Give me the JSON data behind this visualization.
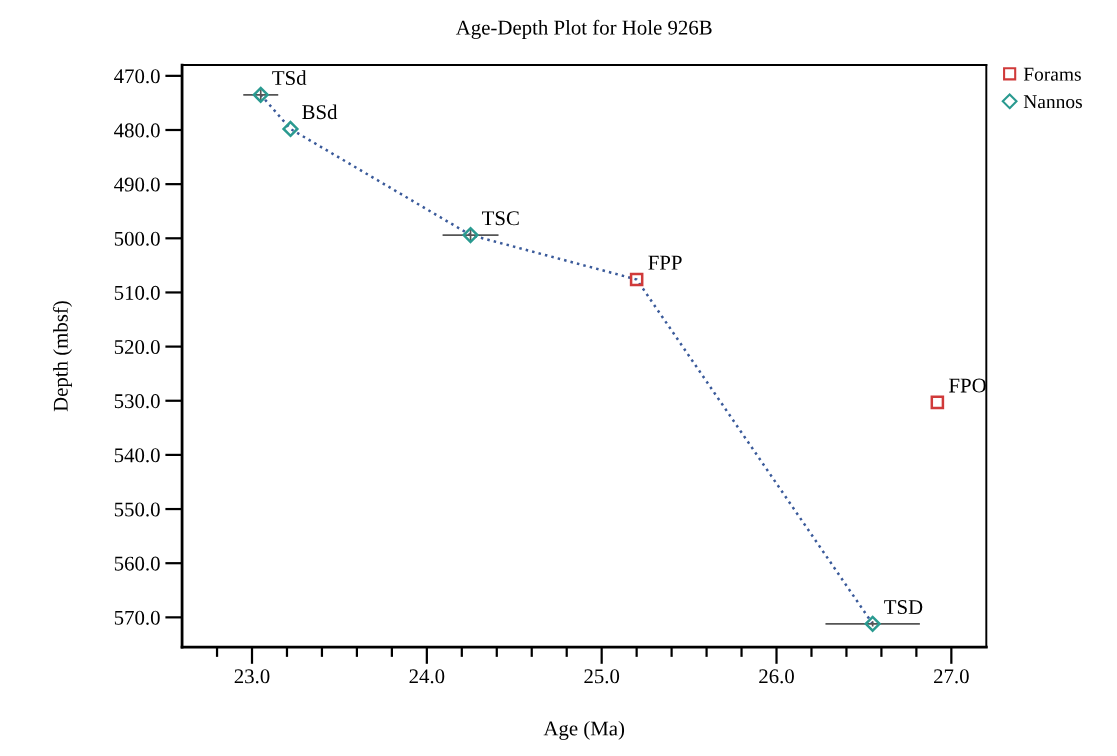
{
  "chart_data": {
    "type": "scatter",
    "title": "Age-Depth Plot for Hole 926B",
    "xlabel": "Age (Ma)",
    "ylabel": "Depth (mbsf)",
    "xlim": [
      22.6,
      27.2
    ],
    "ylim": [
      575.5,
      468
    ],
    "xticks": [
      {
        "value": 22.8,
        "label": null
      },
      {
        "value": 23.0,
        "label": "23.0"
      },
      {
        "value": 23.2,
        "label": null
      },
      {
        "value": 23.4,
        "label": null
      },
      {
        "value": 23.6,
        "label": null
      },
      {
        "value": 23.8,
        "label": null
      },
      {
        "value": 24.0,
        "label": "24.0"
      },
      {
        "value": 24.2,
        "label": null
      },
      {
        "value": 24.4,
        "label": null
      },
      {
        "value": 24.6,
        "label": null
      },
      {
        "value": 24.8,
        "label": null
      },
      {
        "value": 25.0,
        "label": "25.0"
      },
      {
        "value": 25.2,
        "label": null
      },
      {
        "value": 25.4,
        "label": null
      },
      {
        "value": 25.6,
        "label": null
      },
      {
        "value": 25.8,
        "label": null
      },
      {
        "value": 26.0,
        "label": "26.0"
      },
      {
        "value": 26.2,
        "label": null
      },
      {
        "value": 26.4,
        "label": null
      },
      {
        "value": 26.6,
        "label": null
      },
      {
        "value": 26.8,
        "label": null
      },
      {
        "value": 27.0,
        "label": "27.0"
      }
    ],
    "yticks": [
      {
        "value": 470,
        "label": "470.0"
      },
      {
        "value": 480,
        "label": "480.0"
      },
      {
        "value": 490,
        "label": "490.0"
      },
      {
        "value": 500,
        "label": "500.0"
      },
      {
        "value": 510,
        "label": "510.0"
      },
      {
        "value": 520,
        "label": "520.0"
      },
      {
        "value": 530,
        "label": "530.0"
      },
      {
        "value": 540,
        "label": "540.0"
      },
      {
        "value": 550,
        "label": "550.0"
      },
      {
        "value": 560,
        "label": "560.0"
      },
      {
        "value": 570,
        "label": "570.0"
      }
    ],
    "grid": false,
    "legend": "top right",
    "series": [
      {
        "type": "line",
        "color": "#3a5a9a",
        "line_style": "dotted",
        "marker": "none",
        "x": [
          23.05,
          23.22,
          24.25,
          25.2,
          26.55
        ],
        "values": [
          473.5,
          479.8,
          499.4,
          507.6,
          571.2
        ]
      },
      {
        "name": "Forams",
        "color": "#d03a3a",
        "marker": "square",
        "x": [
          25.2,
          26.92
        ],
        "values": [
          507.6,
          530.3
        ]
      },
      {
        "name": "Nannos",
        "color": "#2a9a90",
        "marker": "diamond",
        "x": [
          23.05,
          23.22,
          24.25,
          26.55
        ],
        "values": [
          473.5,
          479.8,
          499.4,
          571.2
        ],
        "xerrors": [
          0.1,
          null,
          0.16,
          0.27
        ],
        "errors": [
          1,
          null,
          1,
          0.5
        ]
      }
    ],
    "annotations": [
      {
        "text": "TSd",
        "x": 23.05,
        "y": 473.5
      },
      {
        "text": "BSd",
        "x": 23.22,
        "y": 479.8
      },
      {
        "text": "TSC",
        "x": 24.25,
        "y": 499.4
      },
      {
        "text": "FPP",
        "x": 25.2,
        "y": 507.6
      },
      {
        "text": "FPO",
        "x": 26.92,
        "y": 530.3
      },
      {
        "text": "TSD",
        "x": 26.55,
        "y": 571.2
      }
    ]
  }
}
